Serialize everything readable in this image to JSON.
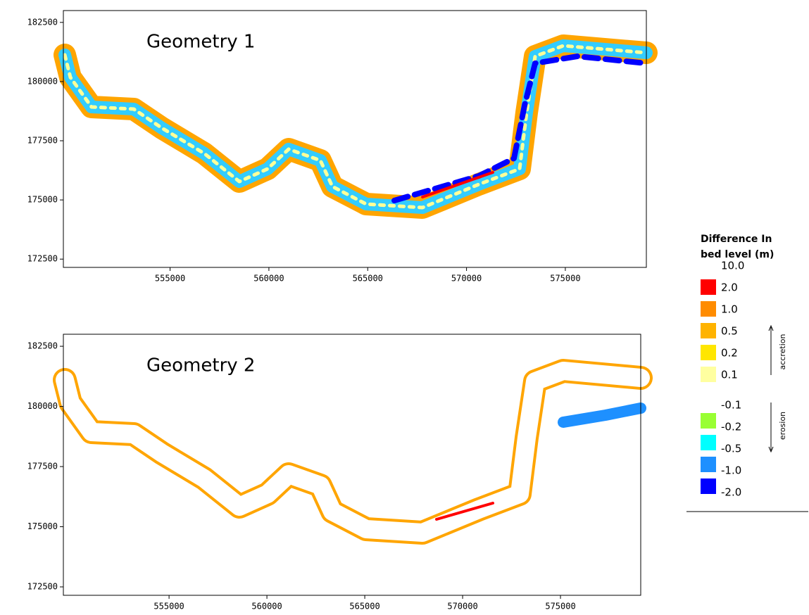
{
  "chart_data": [
    {
      "type": "map",
      "title": "Geometry 1",
      "xlim": [
        549600,
        579100
      ],
      "ylim": [
        172150,
        183000
      ],
      "xticks": [
        555000,
        560000,
        565000,
        570000,
        575000
      ],
      "yticks": [
        172500,
        175000,
        177500,
        180000,
        182500
      ]
    },
    {
      "type": "map",
      "title": "Geometry 2",
      "xlim": [
        549600,
        579100
      ],
      "ylim": [
        172150,
        183000
      ],
      "xticks": [
        555000,
        560000,
        565000,
        570000,
        575000
      ],
      "yticks": [
        172500,
        175000,
        177500,
        180000,
        182500
      ]
    }
  ],
  "legend": {
    "title_lines": [
      "Difference In",
      "bed level (m)"
    ],
    "positive_labels": [
      "10.0",
      "2.0",
      "1.0",
      "0.5",
      "0.2",
      "0.1"
    ],
    "positive_colors": [
      "#ff0000",
      "#ff8c00",
      "#ffb300",
      "#ffe600",
      "#ffffa0"
    ],
    "positive_note": "accretion",
    "negative_labels": [
      "-0.1",
      "-0.2",
      "-0.5",
      "-1.0",
      "-2.0"
    ],
    "negative_colors": [
      "#99ff33",
      "#00ffff",
      "#1e90ff",
      "#0000ff"
    ],
    "negative_note": "erosion"
  }
}
